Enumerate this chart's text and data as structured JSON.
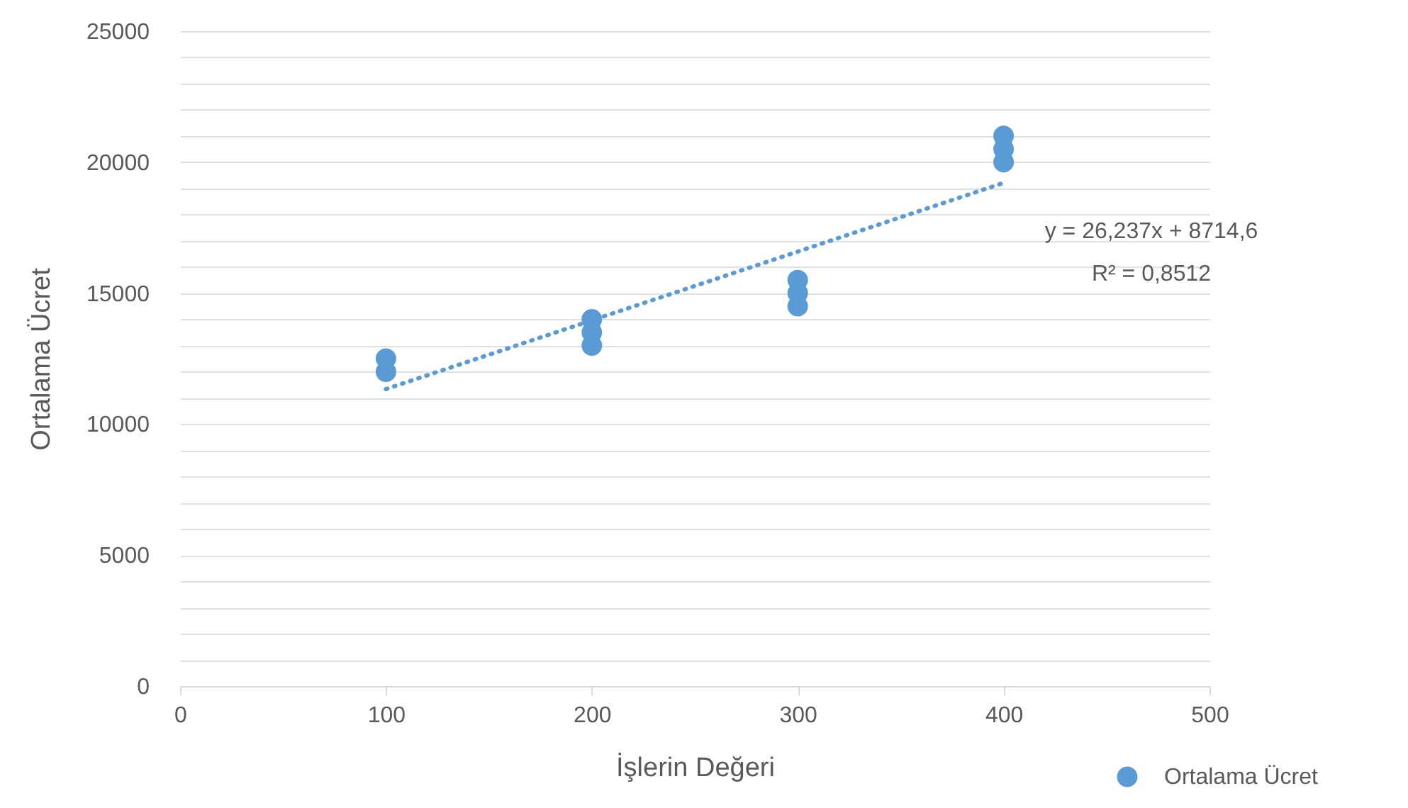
{
  "chart_data": {
    "type": "scatter",
    "xlabel": "İşlerin Değeri",
    "ylabel": "Ortalama Ücret",
    "xlim": [
      0,
      500
    ],
    "xticks": [
      0,
      100,
      200,
      300,
      400,
      500
    ],
    "ylim": [
      0,
      25000
    ],
    "yticks": [
      0,
      {
        "value": 1000,
        "label": null
      },
      {
        "value": 2000,
        "label": null
      },
      {
        "value": 3000,
        "label": null
      },
      {
        "value": 4000,
        "label": null
      },
      5000,
      {
        "value": 6000,
        "label": null
      },
      {
        "value": 7000,
        "label": null
      },
      {
        "value": 8000,
        "label": null
      },
      {
        "value": 9000,
        "label": null
      },
      10000,
      {
        "value": 11000,
        "label": null
      },
      {
        "value": 12000,
        "label": null
      },
      {
        "value": 13000,
        "label": null
      },
      {
        "value": 14000,
        "label": null
      },
      15000,
      {
        "value": 16000,
        "label": null
      },
      {
        "value": 17000,
        "label": null
      },
      {
        "value": 18000,
        "label": null
      },
      {
        "value": 19000,
        "label": null
      },
      20000,
      {
        "value": 21000,
        "label": null
      },
      {
        "value": 22000,
        "label": null
      },
      {
        "value": 23000,
        "label": null
      },
      {
        "value": 24000,
        "label": null
      },
      25000
    ],
    "grid": "y",
    "legend": "bottom right",
    "marker": "circle",
    "series": [
      {
        "name": "Ortalama Ücret",
        "color": "#5b9bd5",
        "x": [
          100,
          100,
          200,
          200,
          200,
          300,
          300,
          300,
          400,
          400,
          400
        ],
        "values": [
          12000,
          12500,
          13000,
          13500,
          14000,
          14500,
          15000,
          15500,
          20000,
          20500,
          21000
        ]
      },
      {
        "type": "line",
        "line_style": "dotted",
        "marker": "none",
        "color": "#5b9bd5",
        "x": [
          100,
          400
        ],
        "values": [
          11338,
          19209
        ]
      }
    ],
    "annotations": [
      "y = 26,237x + 8714,6",
      "R² = 0,8512"
    ]
  }
}
